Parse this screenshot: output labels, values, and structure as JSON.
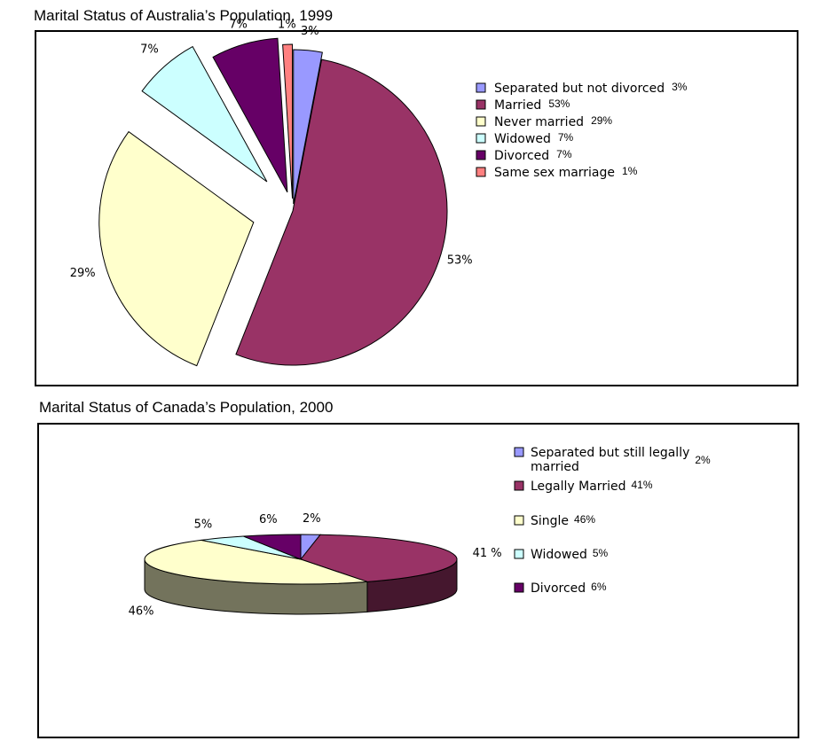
{
  "chart_data": [
    {
      "type": "pie",
      "title": "Marital Status of Australia’s Population, 1999",
      "slices": [
        {
          "name": "Separated but not divorced",
          "value": 3,
          "label": "3%",
          "color": "#9999ff"
        },
        {
          "name": "Married",
          "value": 53,
          "label": "53%",
          "color": "#993366"
        },
        {
          "name": "Never married",
          "value": 29,
          "label": "29%",
          "color": "#ffffcc"
        },
        {
          "name": "Widowed",
          "value": 7,
          "label": "7%",
          "color": "#ccffff"
        },
        {
          "name": "Divorced",
          "value": 7,
          "label": "7%",
          "color": "#660066"
        },
        {
          "name": "Same sex marriage",
          "value": 1,
          "label": "1%",
          "color": "#ff8080"
        }
      ],
      "exploded": true,
      "legend_position": "right"
    },
    {
      "type": "pie",
      "title": "Marital Status of Canada’s Population, 2000",
      "slices": [
        {
          "name": "Separated but still legally married",
          "value": 2,
          "label": "2%",
          "color": "#9999ff"
        },
        {
          "name": "Legally Married",
          "value": 41,
          "label": "41 %",
          "color": "#993366"
        },
        {
          "name": "Single",
          "value": 46,
          "label": "46%",
          "color": "#ffffcc"
        },
        {
          "name": "Widowed",
          "value": 5,
          "label": "5%",
          "color": "#ccffff"
        },
        {
          "name": "Divorced",
          "value": 6,
          "label": "6%",
          "color": "#660066"
        }
      ],
      "three_d": true,
      "legend_position": "right"
    }
  ],
  "legend1": [
    {
      "text": "Separated but not divorced",
      "pct": "3%"
    },
    {
      "text": "Married",
      "pct": "53%"
    },
    {
      "text": "Never married",
      "pct": "29%"
    },
    {
      "text": "Widowed",
      "pct": "7%"
    },
    {
      "text": "Divorced",
      "pct": "7%"
    },
    {
      "text": "Same sex marriage",
      "pct": "1%"
    }
  ],
  "legend2": [
    {
      "text_line1": "Separated but still legally",
      "text_line2": "married",
      "pct": "2%"
    },
    {
      "text_line1": "Legally Married",
      "pct": "41%"
    },
    {
      "text_line1": "Single",
      "pct": "46%"
    },
    {
      "text_line1": "Widowed",
      "pct": "5%"
    },
    {
      "text_line1": "Divorced",
      "pct": "6%"
    }
  ]
}
